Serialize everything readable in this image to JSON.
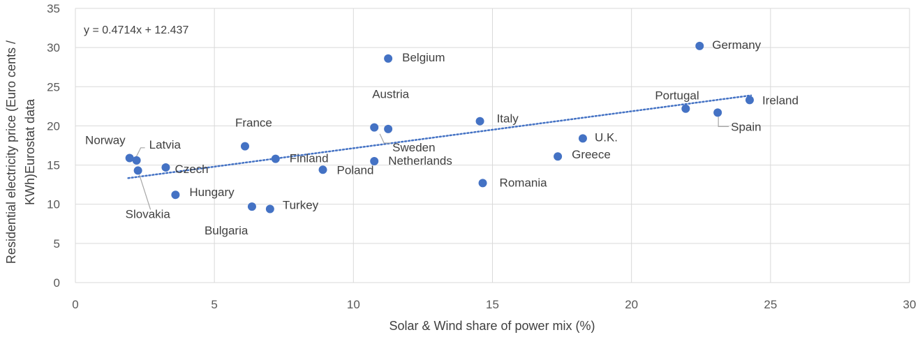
{
  "chart_data": {
    "type": "scatter",
    "title": "",
    "xlabel": "Solar & Wind share of power mix (%)",
    "ylabel_lines": [
      "Residential electricity price (Euro cents /",
      "KWh)Eurostat data"
    ],
    "xlim": [
      0,
      30
    ],
    "ylim": [
      0,
      35
    ],
    "x_ticks": [
      0,
      5,
      10,
      15,
      20,
      25,
      30
    ],
    "y_ticks": [
      0,
      5,
      10,
      15,
      20,
      25,
      30,
      35
    ],
    "grid": true,
    "marker_color": "#4472C4",
    "trendline": {
      "type": "linear",
      "slope": 0.4714,
      "intercept": 12.437,
      "x_range": [
        1.9,
        24.3
      ],
      "equation": "y = 0.4714x + 12.437",
      "color": "#4472C4"
    },
    "points": [
      {
        "label": "Norway",
        "x": 1.95,
        "y": 15.9
      },
      {
        "label": "Latvia",
        "x": 2.2,
        "y": 15.6
      },
      {
        "label": "Slovakia",
        "x": 2.25,
        "y": 14.3
      },
      {
        "label": "Czech",
        "x": 3.25,
        "y": 14.7
      },
      {
        "label": "Hungary",
        "x": 3.6,
        "y": 11.2
      },
      {
        "label": "France",
        "x": 6.1,
        "y": 17.4
      },
      {
        "label": "Bulgaria",
        "x": 6.35,
        "y": 9.7
      },
      {
        "label": "Turkey",
        "x": 7.0,
        "y": 9.4
      },
      {
        "label": "Finland",
        "x": 7.2,
        "y": 15.8
      },
      {
        "label": "Poland",
        "x": 8.9,
        "y": 14.4
      },
      {
        "label": "Austria",
        "x": 10.75,
        "y": 19.8
      },
      {
        "label": "Netherlands",
        "x": 10.75,
        "y": 15.5
      },
      {
        "label": "Belgium",
        "x": 11.25,
        "y": 28.6
      },
      {
        "label": "Sweden",
        "x": 11.25,
        "y": 19.6
      },
      {
        "label": "Italy",
        "x": 14.55,
        "y": 20.6
      },
      {
        "label": "Romania",
        "x": 14.65,
        "y": 12.7
      },
      {
        "label": "Greece",
        "x": 17.35,
        "y": 16.1
      },
      {
        "label": "U.K.",
        "x": 18.25,
        "y": 18.4
      },
      {
        "label": "Portugal",
        "x": 21.95,
        "y": 22.2
      },
      {
        "label": "Germany",
        "x": 22.45,
        "y": 30.2
      },
      {
        "label": "Spain",
        "x": 23.1,
        "y": 21.7
      },
      {
        "label": "Ireland",
        "x": 24.25,
        "y": 23.3
      }
    ]
  }
}
